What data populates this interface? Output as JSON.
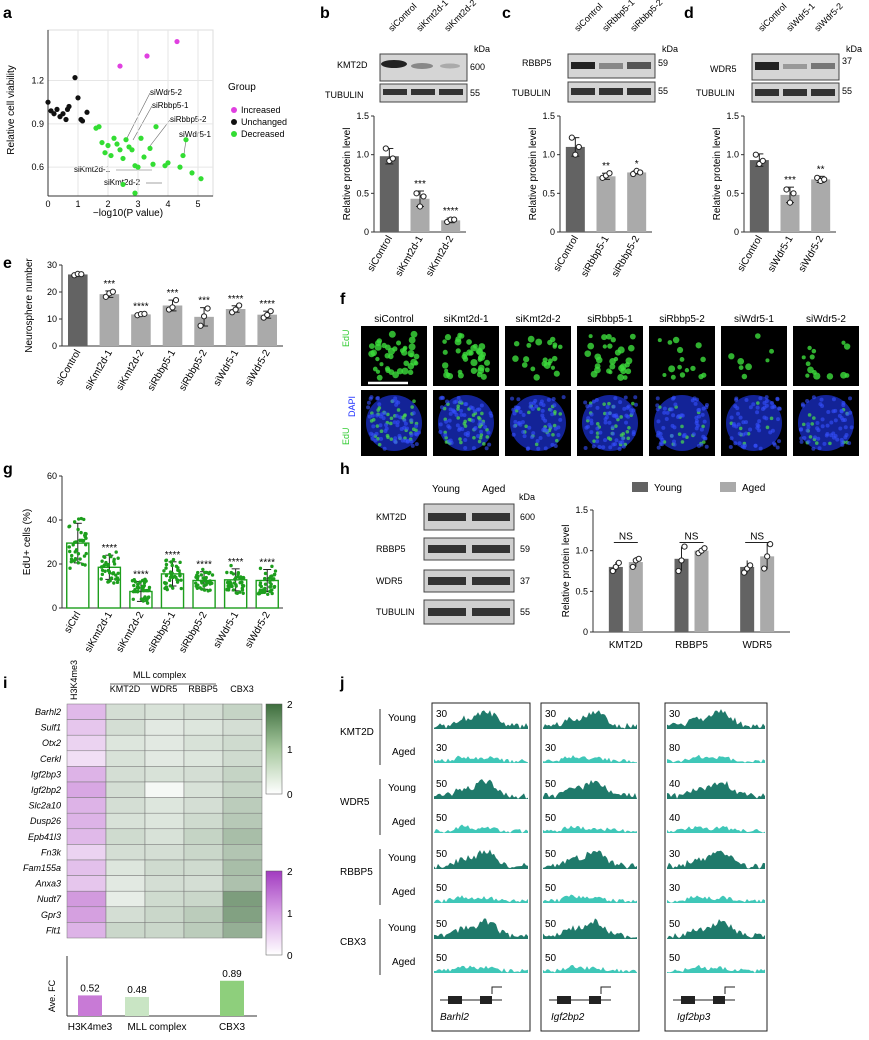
{
  "panels": {
    "a": "a",
    "b": "b",
    "c": "c",
    "d": "d",
    "e": "e",
    "f": "f",
    "g": "g",
    "h": "h",
    "i": "i",
    "j": "j"
  },
  "colors": {
    "increased": "#e040e0",
    "unchanged": "#111111",
    "decreased": "#33dd33",
    "dark_bar": "#636363",
    "light_bar": "#aaaaaa",
    "green": "#1d9e1d",
    "teal_dark": "#1f7a6b",
    "teal_light": "#3fc7b8",
    "heat_green": "#3e6e3e",
    "heat_purple": "#b04ec6"
  },
  "common": {
    "kda": "kDa",
    "tubulin": "TUBULIN",
    "ylabel_protein": "Relative protein level",
    "mw55": "55"
  },
  "panel_a": {
    "chart_data": {
      "type": "scatter",
      "xlabel": "−log10(P value)",
      "ylabel": "Relative cell viability",
      "xlim": [
        0,
        5.5
      ],
      "ylim": [
        0.4,
        1.55
      ],
      "xticks": [
        "0",
        "1",
        "2",
        "3",
        "4",
        "5"
      ],
      "yticks": [
        "0.6",
        "0.9",
        "1.2"
      ],
      "legend_title": "Group",
      "series": [
        {
          "name": "Increased",
          "color": "#e040e0",
          "points": [
            [
              2.4,
              1.3
            ],
            [
              3.3,
              1.37
            ],
            [
              4.3,
              1.47
            ]
          ]
        },
        {
          "name": "Unchanged",
          "color": "#111111",
          "points": [
            [
              0,
              1.05
            ],
            [
              0.1,
              0.99
            ],
            [
              0.2,
              0.97
            ],
            [
              0.3,
              1.0
            ],
            [
              0.4,
              0.95
            ],
            [
              0.5,
              0.97
            ],
            [
              0.6,
              0.93
            ],
            [
              0.65,
              1.0
            ],
            [
              0.7,
              1.02
            ],
            [
              0.9,
              1.22
            ],
            [
              1.0,
              1.08
            ],
            [
              1.1,
              0.93
            ],
            [
              1.15,
              0.92
            ],
            [
              1.3,
              0.98
            ]
          ]
        },
        {
          "name": "Decreased",
          "color": "#33dd33",
          "points": [
            [
              1.6,
              0.87
            ],
            [
              1.7,
              0.88
            ],
            [
              1.8,
              0.77
            ],
            [
              1.9,
              0.7
            ],
            [
              2.0,
              0.75
            ],
            [
              2.1,
              0.68
            ],
            [
              2.2,
              0.8
            ],
            [
              2.3,
              0.76
            ],
            [
              2.4,
              0.72
            ],
            [
              2.5,
              0.66
            ],
            [
              2.6,
              0.79
            ],
            [
              2.7,
              0.74
            ],
            [
              2.8,
              0.72
            ],
            [
              2.9,
              0.61
            ],
            [
              3.1,
              0.8
            ],
            [
              3.2,
              0.67
            ],
            [
              3.4,
              0.73
            ],
            [
              3.5,
              0.62
            ],
            [
              3.6,
              0.88
            ],
            [
              3.9,
              0.61
            ],
            [
              4.0,
              0.63
            ],
            [
              4.4,
              0.6
            ],
            [
              4.5,
              0.68
            ],
            [
              4.6,
              0.79
            ],
            [
              4.8,
              0.56
            ],
            [
              5.1,
              0.52
            ],
            [
              2.5,
              0.48
            ],
            [
              3.0,
              0.6
            ],
            [
              2.9,
              0.42
            ]
          ]
        }
      ],
      "annotations": [
        "siWdr5-2",
        "siRbbp5-1",
        "siRbbp5-2",
        "siWdr5-1",
        "siKmt2d-1",
        "siKmt2d-2"
      ]
    }
  },
  "panel_b": {
    "lanes": [
      "siControl",
      "siKmt2d-1",
      "siKmt2d-2"
    ],
    "protein": "KMT2D",
    "mw": "600",
    "chart_data": {
      "type": "bar",
      "categories": [
        "siControl",
        "siKmt2d-1",
        "siKmt2d-2"
      ],
      "values": [
        0.98,
        0.43,
        0.15
      ],
      "errors": [
        0.1,
        0.1,
        0.03
      ],
      "points": [
        [
          1.08,
          0.92,
          0.95
        ],
        [
          0.5,
          0.33,
          0.46
        ],
        [
          0.13,
          0.16,
          0.16
        ]
      ],
      "sig": [
        "",
        "***",
        "****"
      ],
      "ylim": [
        0,
        1.5
      ],
      "yticks": [
        "0",
        "0.5",
        "1.0",
        "1.5"
      ],
      "ylabel": "Relative protein level"
    }
  },
  "panel_c": {
    "lanes": [
      "siControl",
      "siRbbp5-1",
      "siRbbp5-2"
    ],
    "protein": "RBBP5",
    "mw": "59",
    "chart_data": {
      "type": "bar",
      "categories": [
        "siControl",
        "siRbbp5-1",
        "siRbbp5-2"
      ],
      "values": [
        1.1,
        0.72,
        0.77
      ],
      "errors": [
        0.12,
        0.04,
        0.02
      ],
      "points": [
        [
          1.22,
          1.0,
          1.1
        ],
        [
          0.7,
          0.73,
          0.76
        ],
        [
          0.75,
          0.79,
          0.77
        ]
      ],
      "sig": [
        "",
        "**",
        "*"
      ],
      "ylim": [
        0,
        1.5
      ],
      "yticks": [
        "0",
        "0.5",
        "1.0",
        "1.5"
      ],
      "ylabel": "Relative protein level"
    }
  },
  "panel_d": {
    "lanes": [
      "siControl",
      "siWdr5-1",
      "siWdr5-2"
    ],
    "protein": "WDR5",
    "mw": "37",
    "chart_data": {
      "type": "bar",
      "categories": [
        "siControl",
        "siWdr5-1",
        "siWdr5-2"
      ],
      "values": [
        0.93,
        0.48,
        0.68
      ],
      "errors": [
        0.08,
        0.1,
        0.04
      ],
      "points": [
        [
          1.0,
          0.88,
          0.92
        ],
        [
          0.55,
          0.38,
          0.5
        ],
        [
          0.7,
          0.66,
          0.68
        ]
      ],
      "sig": [
        "",
        "***",
        "**"
      ],
      "ylim": [
        0,
        1.5
      ],
      "yticks": [
        "0",
        "0.5",
        "1.0",
        "1.5"
      ],
      "ylabel": "Relative protein level"
    }
  },
  "panel_e": {
    "chart_data": {
      "type": "bar",
      "categories": [
        "siControl",
        "siKmt2d-1",
        "siKmt2d-2",
        "siRbbp5-1",
        "siRbbp5-2",
        "siWdr5-1",
        "siWdr5-2"
      ],
      "values": [
        26.5,
        19.2,
        11.7,
        15.0,
        10.8,
        13.7,
        11.6
      ],
      "errors": [
        0.4,
        1.2,
        0.4,
        2.0,
        3.4,
        1.2,
        1.3
      ],
      "points": [
        [
          26.2,
          26.7,
          26.6
        ],
        [
          18.2,
          19.5,
          20.1
        ],
        [
          11.4,
          11.8,
          11.9
        ],
        [
          13.5,
          14.3,
          17.0
        ],
        [
          7.5,
          11.0,
          13.9
        ],
        [
          12.5,
          13.5,
          15.0
        ],
        [
          10.5,
          11.5,
          12.9
        ]
      ],
      "sig": [
        "",
        "***",
        "****",
        "***",
        "***",
        "****",
        "****"
      ],
      "ylim": [
        0,
        30
      ],
      "yticks": [
        "0",
        "10",
        "20",
        "30"
      ],
      "ylabel": "Neurosphere number"
    }
  },
  "panel_f": {
    "columns": [
      "siControl",
      "siKmt2d-1",
      "siKmt2d-2",
      "siRbbp5-1",
      "siRbbp5-2",
      "siWdr5-1",
      "siWdr5-2"
    ],
    "row1": "EdU",
    "row2a": "DAPI",
    "row2b": "EdU"
  },
  "panel_g": {
    "chart_data": {
      "type": "bar",
      "categories": [
        "siCtrl",
        "siKmt2d-1",
        "siKmt2d-2",
        "siRbbp5-1",
        "siRbbp5-2",
        "siWdr5-1",
        "siWdr5-2"
      ],
      "values": [
        29.5,
        18.5,
        7.5,
        15.5,
        12.5,
        12.8,
        12.5
      ],
      "errors": [
        9,
        5.5,
        4.5,
        5.5,
        4,
        5,
        5
      ],
      "sig": [
        "",
        "****",
        "****",
        "****",
        "****",
        "****",
        "****"
      ],
      "ylim": [
        0,
        60
      ],
      "yticks": [
        "0",
        "20",
        "40",
        "60"
      ],
      "ylabel": "EdU+ cells (%)"
    }
  },
  "panel_h": {
    "lanes": [
      "Young",
      "Aged"
    ],
    "proteins": [
      {
        "name": "KMT2D",
        "mw": "600"
      },
      {
        "name": "RBBP5",
        "mw": "59"
      },
      {
        "name": "WDR5",
        "mw": "37"
      },
      {
        "name": "TUBULIN",
        "mw": "55"
      }
    ],
    "chart_data": {
      "type": "bar",
      "categories": [
        "KMT2D",
        "RBBP5",
        "WDR5"
      ],
      "series": [
        {
          "name": "Young",
          "values": [
            0.8,
            0.9,
            0.8
          ],
          "errors": [
            0.06,
            0.15,
            0.08
          ],
          "points": [
            [
              0.75,
              0.8,
              0.85
            ],
            [
              0.75,
              0.88,
              1.05
            ],
            [
              0.73,
              0.78,
              0.82
            ]
          ]
        },
        {
          "name": "Aged",
          "values": [
            0.86,
            1.0,
            0.93
          ],
          "errors": [
            0.06,
            0.04,
            0.16
          ],
          "points": [
            [
              0.8,
              0.88,
              0.9
            ],
            [
              0.97,
              1.0,
              1.03
            ],
            [
              0.78,
              0.93,
              1.08
            ]
          ]
        }
      ],
      "sig": [
        "NS",
        "NS",
        "NS"
      ],
      "ylim": [
        0,
        1.5
      ],
      "yticks": [
        "0",
        "0.5",
        "1.0",
        "1.5"
      ],
      "ylabel": "Relative protein level"
    }
  },
  "panel_i": {
    "group_label": "MLL complex",
    "chart_data": {
      "type": "heatmap",
      "columns": [
        "H3K4me3",
        "KMT2D",
        "WDR5",
        "RBBP5",
        "CBX3"
      ],
      "rows": [
        "Barhl2",
        "Sulf1",
        "Otx2",
        "Cerkl",
        "Igf2bp3",
        "Igf2bp2",
        "Slc2a10",
        "Dusp26",
        "Epb41l3",
        "Fn3k",
        "Fam155a",
        "Anxa3",
        "Nudt7",
        "Gpr3",
        "Flt1"
      ],
      "values": [
        [
          0.55,
          0.45,
          0.4,
          0.45,
          0.6
        ],
        [
          0.45,
          0.45,
          0.3,
          0.35,
          0.45
        ],
        [
          0.35,
          0.35,
          0.3,
          0.4,
          0.5
        ],
        [
          0.25,
          0.4,
          0.3,
          0.35,
          0.5
        ],
        [
          0.6,
          0.45,
          0.4,
          0.45,
          0.6
        ],
        [
          0.7,
          0.45,
          0.1,
          0.4,
          0.6
        ],
        [
          0.6,
          0.45,
          0.35,
          0.45,
          0.7
        ],
        [
          0.6,
          0.4,
          0.35,
          0.5,
          0.75
        ],
        [
          0.55,
          0.5,
          0.4,
          0.6,
          0.9
        ],
        [
          0.35,
          0.45,
          0.45,
          0.55,
          0.8
        ],
        [
          0.5,
          0.35,
          0.5,
          0.5,
          0.9
        ],
        [
          0.45,
          0.3,
          0.45,
          0.45,
          0.85
        ],
        [
          0.8,
          0.25,
          0.5,
          0.55,
          1.35
        ],
        [
          0.75,
          0.45,
          0.55,
          0.7,
          1.3
        ],
        [
          0.6,
          0.55,
          0.55,
          0.7,
          1.1
        ]
      ],
      "colorbar_green": {
        "ticks": [
          "0",
          "1",
          "2"
        ]
      },
      "colorbar_purple": {
        "ticks": [
          "0",
          "1",
          "2"
        ]
      }
    },
    "bars": {
      "chart_data": {
        "type": "bar",
        "categories": [
          "H3K4me3",
          "MLL complex",
          "CBX3"
        ],
        "values": [
          0.52,
          0.48,
          0.89
        ],
        "labels": [
          "0.52",
          "0.48",
          "0.89"
        ],
        "ylabel": "Ave. FC"
      }
    }
  },
  "panel_j": {
    "rows": [
      {
        "protein": "KMT2D",
        "young": "Young",
        "aged": "Aged"
      },
      {
        "protein": "WDR5",
        "young": "Young",
        "aged": "Aged"
      },
      {
        "protein": "RBBP5",
        "young": "Young",
        "aged": "Aged"
      },
      {
        "protein": "CBX3",
        "young": "Young",
        "aged": "Aged"
      }
    ],
    "genes": [
      "Barhl2",
      "Igf2bp2",
      "Igf2bp3"
    ],
    "scales": [
      [
        "30",
        "30",
        "30"
      ],
      [
        "30",
        "30",
        "80"
      ],
      [
        "50",
        "50",
        "40"
      ],
      [
        "50",
        "50",
        "40"
      ],
      [
        "50",
        "50",
        "30"
      ],
      [
        "50",
        "50",
        "30"
      ],
      [
        "50",
        "50",
        "50"
      ],
      [
        "50",
        "50",
        "50"
      ]
    ]
  }
}
